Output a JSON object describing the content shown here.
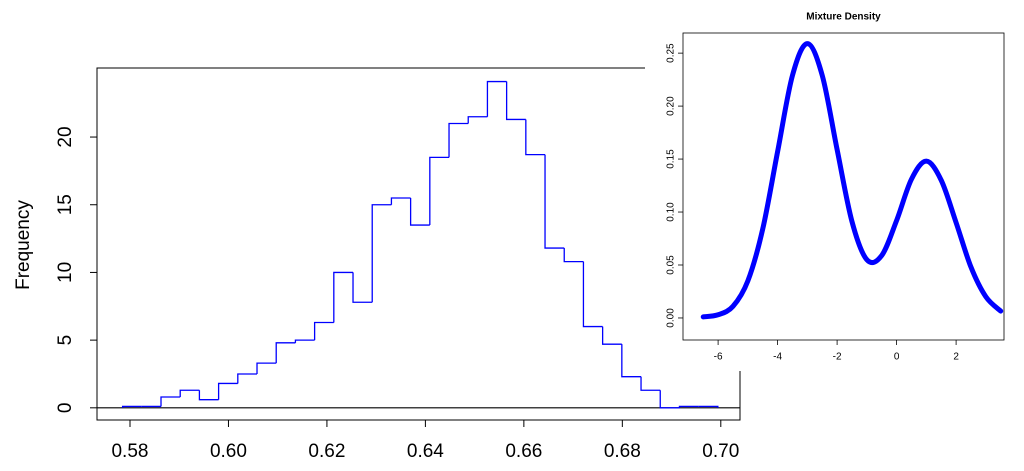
{
  "chart_data": [
    {
      "type": "histogram",
      "y_label": "Frequency",
      "color": "#0000ff",
      "bins": [
        0.5785,
        0.5824,
        0.5863,
        0.5902,
        0.5941,
        0.598,
        0.6019,
        0.6058,
        0.6097,
        0.6136,
        0.6175,
        0.6214,
        0.6253,
        0.6292,
        0.6331,
        0.637,
        0.6409,
        0.6448,
        0.6487,
        0.6526,
        0.6565,
        0.6604,
        0.6643,
        0.6682,
        0.6721,
        0.676,
        0.6799,
        0.6838,
        0.6877,
        0.6916,
        0.6955,
        0.6994
      ],
      "values": [
        0.1,
        0.1,
        0.8,
        1.3,
        0.6,
        1.8,
        2.5,
        3.3,
        4.8,
        5.0,
        6.3,
        10.0,
        7.8,
        15.0,
        15.5,
        13.5,
        18.5,
        21.0,
        21.5,
        24.1,
        21.3,
        18.7,
        11.8,
        10.8,
        6.0,
        4.7,
        2.3,
        1.3,
        0,
        0.1,
        0.1
      ],
      "xlim": [
        0.5733,
        0.7039
      ],
      "ylim": [
        -0.9,
        25.1
      ],
      "xticks": [
        0.58,
        {
          "value": 0.6,
          "label": "0.60"
        },
        0.62,
        0.64,
        0.66,
        0.68,
        {
          "value": 0.7,
          "label": "0.70"
        }
      ],
      "yticks": [
        0,
        5,
        10,
        15,
        20
      ]
    },
    {
      "type": "line",
      "title": "Mixture Density",
      "color": "#0000ff",
      "x": [
        -6.5,
        -6,
        -5.5,
        -5,
        -4.5,
        -4,
        -3.5,
        -3,
        -2.5,
        -2,
        -1.5,
        -1,
        -0.5,
        0,
        0.5,
        1,
        1.5,
        2,
        2.5,
        3,
        3.5
      ],
      "values": [
        0.001,
        0.003,
        0.011,
        0.035,
        0.084,
        0.157,
        0.229,
        0.259,
        0.229,
        0.159,
        0.091,
        0.055,
        0.059,
        0.092,
        0.131,
        0.148,
        0.13,
        0.09,
        0.048,
        0.02,
        0.0065
      ],
      "xlim": [
        -7.18,
        3.61
      ],
      "ylim": [
        -0.0208,
        0.269
      ],
      "xticks": [
        -6,
        -4,
        -2,
        0,
        2
      ],
      "yticks": [
        {
          "value": 0,
          "label": "0.00"
        },
        {
          "value": 0.05,
          "label": "0.05"
        },
        {
          "value": 0.1,
          "label": "0.10"
        },
        {
          "value": 0.15,
          "label": "0.15"
        },
        {
          "value": 0.2,
          "label": "0.20"
        },
        {
          "value": 0.25,
          "label": "0.25"
        }
      ]
    }
  ]
}
